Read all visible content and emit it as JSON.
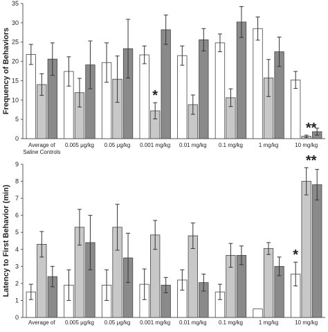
{
  "chart_data": [
    {
      "type": "bar",
      "ylabel": "Frequency of Behaviors",
      "xlabel": "",
      "ylim": [
        0,
        35
      ],
      "yticks": [
        0,
        5,
        10,
        15,
        20,
        25,
        30,
        35
      ],
      "categories": [
        "Average of Saline Controls",
        "0.005 μg/kg",
        "0.05 μg/kg",
        "0.001 mg/kg",
        "0.01 mg/kg",
        "0.1 mg/kg",
        "1 mg/kg",
        "10 mg/kg"
      ],
      "category_lines": [
        [
          "Average of",
          "Saline Controls"
        ],
        [
          "0.005 μg/kg"
        ],
        [
          "0.05 μg/kg"
        ],
        [
          "0.001 mg/kg"
        ],
        [
          "0.01 mg/kg"
        ],
        [
          "0.1 mg/kg"
        ],
        [
          "1 mg/kg"
        ],
        [
          "10 mg/kg"
        ]
      ],
      "series_colors": [
        "#ffffff",
        "#c8c8c8",
        "#8a8a8a"
      ],
      "series": [
        {
          "values": [
            21.8,
            17.4,
            19.7,
            21.7,
            21.5,
            24.8,
            28.5,
            15.2
          ],
          "errors": [
            2.6,
            3.8,
            5.1,
            2.3,
            2.5,
            2.3,
            3.0,
            2.2
          ]
        },
        {
          "values": [
            14.0,
            11.9,
            15.4,
            7.2,
            8.8,
            10.6,
            15.7,
            0.6
          ],
          "errors": [
            2.8,
            3.7,
            6.0,
            2.1,
            2.5,
            2.3,
            4.8,
            0.3
          ]
        },
        {
          "values": [
            20.6,
            19.1,
            23.3,
            28.2,
            25.6,
            30.2,
            22.5,
            1.8
          ],
          "errors": [
            4.2,
            6.2,
            7.6,
            3.8,
            2.9,
            4.0,
            3.8,
            0.9
          ]
        }
      ],
      "annotations": [
        {
          "text": "*",
          "category": "0.001 mg/kg",
          "series": 1
        },
        {
          "text": "**",
          "category": "10 mg/kg",
          "series": 1
        }
      ]
    },
    {
      "type": "bar",
      "ylabel": "Latency to First Behavior (min)",
      "xlabel": "",
      "ylim": [
        0,
        9
      ],
      "yticks": [
        0,
        1,
        2,
        3,
        4,
        5,
        6,
        7,
        8,
        9
      ],
      "categories": [
        "Average of",
        "0.005 μg/kg",
        "0.05 μg/kg",
        "0.001 mg/kg",
        "0.01 mg/kg",
        "0.1 mg/kg",
        "1 mg/kg",
        "10 mg/kg"
      ],
      "category_lines": [
        [
          "Average of"
        ],
        [
          "0.005 μg/kg"
        ],
        [
          "0.05 μg/kg"
        ],
        [
          "0.001 mg/kg"
        ],
        [
          "0.01 mg/kg"
        ],
        [
          "0.1 mg/kg"
        ],
        [
          "1 mg/kg"
        ],
        [
          "10 mg/kg"
        ]
      ],
      "series_colors": [
        "#ffffff",
        "#c8c8c8",
        "#8a8a8a"
      ],
      "series": [
        {
          "values": [
            1.5,
            1.9,
            1.9,
            1.95,
            2.2,
            1.5,
            0.5,
            2.55
          ],
          "errors": [
            0.45,
            0.9,
            0.9,
            0.9,
            0.6,
            0.45,
            0.0,
            0.7
          ]
        },
        {
          "values": [
            4.3,
            5.3,
            5.3,
            4.85,
            4.8,
            3.65,
            4.05,
            8.0
          ],
          "errors": [
            0.75,
            1.05,
            1.35,
            0.85,
            0.75,
            0.7,
            0.35,
            0.8
          ]
        },
        {
          "values": [
            2.4,
            4.4,
            3.5,
            1.9,
            2.05,
            3.65,
            3.0,
            7.8
          ],
          "errors": [
            0.6,
            1.6,
            1.45,
            0.45,
            0.5,
            0.55,
            0.55,
            0.9
          ]
        }
      ],
      "annotations": [
        {
          "text": "*",
          "category": "10 mg/kg",
          "series": 0
        },
        {
          "text": "**",
          "category": "10 mg/kg",
          "series": 1
        }
      ]
    }
  ]
}
